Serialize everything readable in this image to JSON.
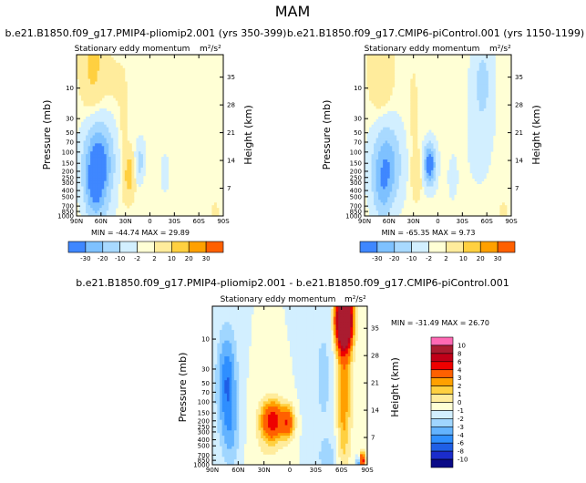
{
  "figure_title": "MAM",
  "panels": [
    {
      "id": "top-left",
      "title": "b.e21.B1850.f09_g17.PMIP4-pliomip2.001 (yrs 350-399)",
      "subtitle": "Stationary eddy momentum",
      "units": "m²/s²",
      "ylabel": "Pressure (mb)",
      "ylabel_right": "Height (km)",
      "stats": "MIN = -44.74   MAX = 29.89",
      "colorbar_type": "horizontal"
    },
    {
      "id": "top-right",
      "title": "b.e21.B1850.f09_g17.CMIP6-piControl.001 (yrs 1150-1199)",
      "subtitle": "Stationary eddy momentum",
      "units": "m²/s²",
      "ylabel": "Pressure (mb)",
      "ylabel_right": "Height (km)",
      "stats": "MIN = -65.35   MAX = 9.73",
      "colorbar_type": "horizontal"
    },
    {
      "id": "bottom",
      "title": "b.e21.B1850.f09_g17.PMIP4-pliomip2.001 - b.e21.B1850.f09_g17.CMIP6-piControl.001",
      "subtitle": "Stationary eddy momentum",
      "units": "m²/s²",
      "ylabel": "Pressure (mb)",
      "ylabel_right": "Height (km)",
      "stats": "MIN = -31.49   MAX = 26.70",
      "colorbar_type": "vertical"
    }
  ],
  "chart_data": [
    {
      "type": "heatmap",
      "panel": "top-left",
      "x_ticks": [
        "90N",
        "60N",
        "30N",
        "0",
        "30S",
        "60S",
        "90S"
      ],
      "x_values": [
        90,
        60,
        30,
        0,
        -30,
        -60,
        -90
      ],
      "y_ticks": [
        10,
        30,
        50,
        70,
        100,
        150,
        200,
        250,
        300,
        400,
        500,
        700,
        850,
        1000
      ],
      "y_ticks_right": [
        35,
        28,
        21,
        14,
        7
      ],
      "ylim": [
        1000,
        3
      ],
      "min": -44.74,
      "max": 29.89,
      "colorbar_levels": [
        -30,
        -20,
        -10,
        -2,
        2,
        10,
        20,
        30
      ],
      "colorbar_colors": [
        "#a020f0",
        "#0a0a87",
        "#1f3cd6",
        "#3f87ff",
        "#7ec1ff",
        "#a8d9ff",
        "#d2efff",
        "#ffffd5",
        "#ffec9c",
        "#ffd040",
        "#ffa000",
        "#ff6000",
        "#ee0000",
        "#c00018",
        "#aa1c30",
        "#ff69b4"
      ],
      "blobs": [
        {
          "lat": 63,
          "p": 150,
          "sx": 12,
          "sy": 2.1,
          "v": -40
        },
        {
          "lat": 68,
          "p": 450,
          "sx": 8,
          "sy": 1.6,
          "v": -20
        },
        {
          "lat": 12,
          "p": 140,
          "sx": 4,
          "sy": 1.1,
          "v": -14
        },
        {
          "lat": -18,
          "p": 210,
          "sx": 3,
          "sy": 0.9,
          "v": -9
        },
        {
          "lat": 52,
          "p": 850,
          "sx": 6,
          "sy": 0.8,
          "v": -3
        },
        {
          "lat": -60,
          "p": 40,
          "sx": 14,
          "sy": 4,
          "v": -1.5
        },
        {
          "lat": 25,
          "p": 230,
          "sx": 4,
          "sy": 1.2,
          "v": 17
        },
        {
          "lat": 70,
          "p": 4,
          "sx": 10,
          "sy": 2.5,
          "v": 13
        },
        {
          "lat": 42,
          "p": 8,
          "sx": 9,
          "sy": 1.5,
          "v": 3
        },
        {
          "lat": 33,
          "p": 90,
          "sx": 4,
          "sy": 3.5,
          "v": 4
        },
        {
          "lat": 5,
          "p": 350,
          "sx": 4,
          "sy": 1.2,
          "v": 2
        },
        {
          "lat": -80,
          "p": 880,
          "sx": 2.5,
          "sy": 0.5,
          "v": 6
        }
      ]
    },
    {
      "type": "heatmap",
      "panel": "top-right",
      "x_ticks": [
        "90N",
        "60N",
        "30N",
        "0",
        "30S",
        "60S",
        "90S"
      ],
      "x_values": [
        90,
        60,
        30,
        0,
        -30,
        -60,
        -90
      ],
      "y_ticks": [
        10,
        30,
        50,
        70,
        100,
        150,
        200,
        250,
        300,
        400,
        500,
        700,
        850,
        1000
      ],
      "y_ticks_right": [
        35,
        28,
        21,
        14,
        7
      ],
      "ylim": [
        1000,
        3
      ],
      "min": -65.35,
      "max": 9.73,
      "colorbar_levels": [
        -30,
        -20,
        -10,
        -2,
        2,
        10,
        20,
        30
      ],
      "colorbar_colors": [
        "#a020f0",
        "#0a0a87",
        "#1f3cd6",
        "#3f87ff",
        "#7ec1ff",
        "#a8d9ff",
        "#d2efff",
        "#ffffd5",
        "#ffec9c",
        "#ffd040",
        "#ffa000",
        "#ff6000",
        "#ee0000",
        "#c00018",
        "#aa1c30",
        "#ff69b4"
      ],
      "blobs": [
        {
          "lat": 63,
          "p": 150,
          "sx": 12,
          "sy": 2.1,
          "v": -28
        },
        {
          "lat": 68,
          "p": 450,
          "sx": 8,
          "sy": 1.6,
          "v": -14
        },
        {
          "lat": 10,
          "p": 155,
          "sx": 5,
          "sy": 1.1,
          "v": -40
        },
        {
          "lat": -55,
          "p": 8,
          "sx": 8,
          "sy": 2.5,
          "v": -12
        },
        {
          "lat": -50,
          "p": 60,
          "sx": 15,
          "sy": 4,
          "v": -3
        },
        {
          "lat": -18,
          "p": 250,
          "sx": 4,
          "sy": 1.2,
          "v": -5
        },
        {
          "lat": 70,
          "p": 5,
          "sx": 10,
          "sy": 2.5,
          "v": 9
        },
        {
          "lat": 26,
          "p": 230,
          "sx": 4,
          "sy": 1.2,
          "v": 8
        },
        {
          "lat": 30,
          "p": 30,
          "sx": 5,
          "sy": 4,
          "v": 3
        },
        {
          "lat": -80,
          "p": 900,
          "sx": 2.5,
          "sy": 0.5,
          "v": 8
        }
      ]
    },
    {
      "type": "heatmap",
      "panel": "bottom",
      "x_ticks": [
        "90N",
        "60N",
        "30N",
        "0",
        "30S",
        "60S",
        "90S"
      ],
      "x_values": [
        90,
        60,
        30,
        0,
        -30,
        -60,
        -90
      ],
      "y_ticks": [
        10,
        30,
        50,
        70,
        100,
        150,
        200,
        250,
        300,
        400,
        500,
        700,
        850,
        1000
      ],
      "y_ticks_right": [
        35,
        28,
        21,
        14,
        7
      ],
      "ylim": [
        1000,
        3
      ],
      "min": -31.49,
      "max": 26.7,
      "colorbar_levels": [
        -10,
        -8,
        -6,
        -4,
        -3,
        -2,
        -1,
        0,
        1,
        2,
        3,
        4,
        6,
        8,
        10
      ],
      "colorbar_colors": [
        "#a020f0",
        "#0a0a87",
        "#1b2ccc",
        "#1f5fe6",
        "#2f8fff",
        "#63b3ff",
        "#a0d6ff",
        "#d2efff",
        "#ffffd5",
        "#ffec9c",
        "#ffd040",
        "#ffa000",
        "#ff6000",
        "#ee0000",
        "#c00018",
        "#aa1c30",
        "#ff69b4"
      ],
      "blobs": [
        {
          "lat": 73,
          "p": 50,
          "sx": 8,
          "sy": 3,
          "v": -4
        },
        {
          "lat": 68,
          "p": 350,
          "sx": 8,
          "sy": 2,
          "v": -1.5
        },
        {
          "lat": -40,
          "p": 40,
          "sx": 12,
          "sy": 5,
          "v": -1.2
        },
        {
          "lat": -45,
          "p": 800,
          "sx": 8,
          "sy": 1,
          "v": -1.2
        },
        {
          "lat": 20,
          "p": 200,
          "sx": 9,
          "sy": 1.1,
          "v": 7
        },
        {
          "lat": 2,
          "p": 210,
          "sx": 5,
          "sy": 0.9,
          "v": 5
        },
        {
          "lat": -63,
          "p": 5,
          "sx": 6,
          "sy": 1.5,
          "v": 22
        },
        {
          "lat": -63,
          "p": 40,
          "sx": 7,
          "sy": 4,
          "v": 3
        },
        {
          "lat": -62,
          "p": 300,
          "sx": 5,
          "sy": 4,
          "v": 1.5
        },
        {
          "lat": 28,
          "p": 500,
          "sx": 15,
          "sy": 3,
          "v": 0.8
        },
        {
          "lat": -84,
          "p": 880,
          "sx": 2.5,
          "sy": 0.5,
          "v": 8
        },
        {
          "lat": -80,
          "p": 960,
          "sx": 2,
          "sy": 0.4,
          "v": -5
        }
      ]
    }
  ]
}
